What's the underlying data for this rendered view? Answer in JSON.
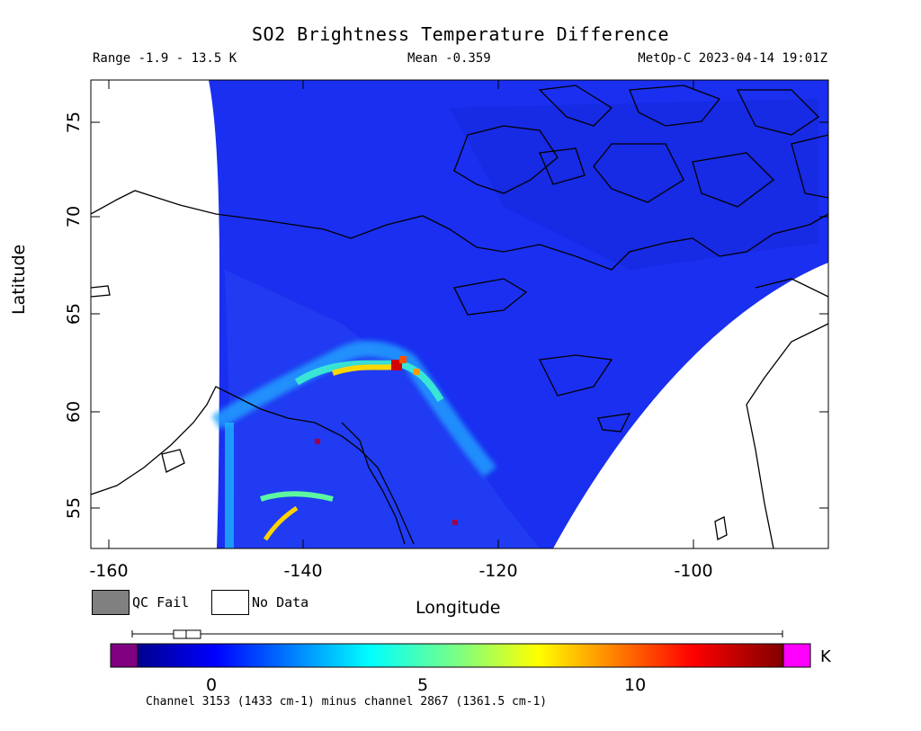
{
  "header": {
    "title": "SO2 Brightness Temperature Difference",
    "range": "Range -1.9 - 13.5 K",
    "mean": "Mean -0.359",
    "satellite_time": "MetOp-C 2023-04-14 19:01Z"
  },
  "axes": {
    "xlabel": "Longitude",
    "ylabel": "Latitude",
    "x_ticks": [
      "-160",
      "-140",
      "-120",
      "-100"
    ],
    "y_ticks": [
      "75",
      "70",
      "65",
      "60",
      "55"
    ],
    "lon_range": [
      -162,
      -87
    ],
    "lat_range": [
      53,
      77
    ]
  },
  "legend": {
    "qc_fail": "QC Fail",
    "no_data": "No Data",
    "qc_color": "#808080",
    "nodata_color": "#ffffff"
  },
  "colorbar": {
    "unit": "K",
    "ticks": [
      "0",
      "5",
      "10"
    ],
    "min": -1.9,
    "max": 13.5,
    "low_clip_color": "#800080",
    "high_clip_color": "#ff00ff",
    "colormap": "jet"
  },
  "footnote": "Channel 3153 (1433 cm-1) minus channel 2867 (1361.5 cm-1)",
  "map": {
    "background_value_color": "#1a2ff0",
    "swath_edge_color": "#ffffff",
    "plume_peak_color": "#d40000"
  }
}
